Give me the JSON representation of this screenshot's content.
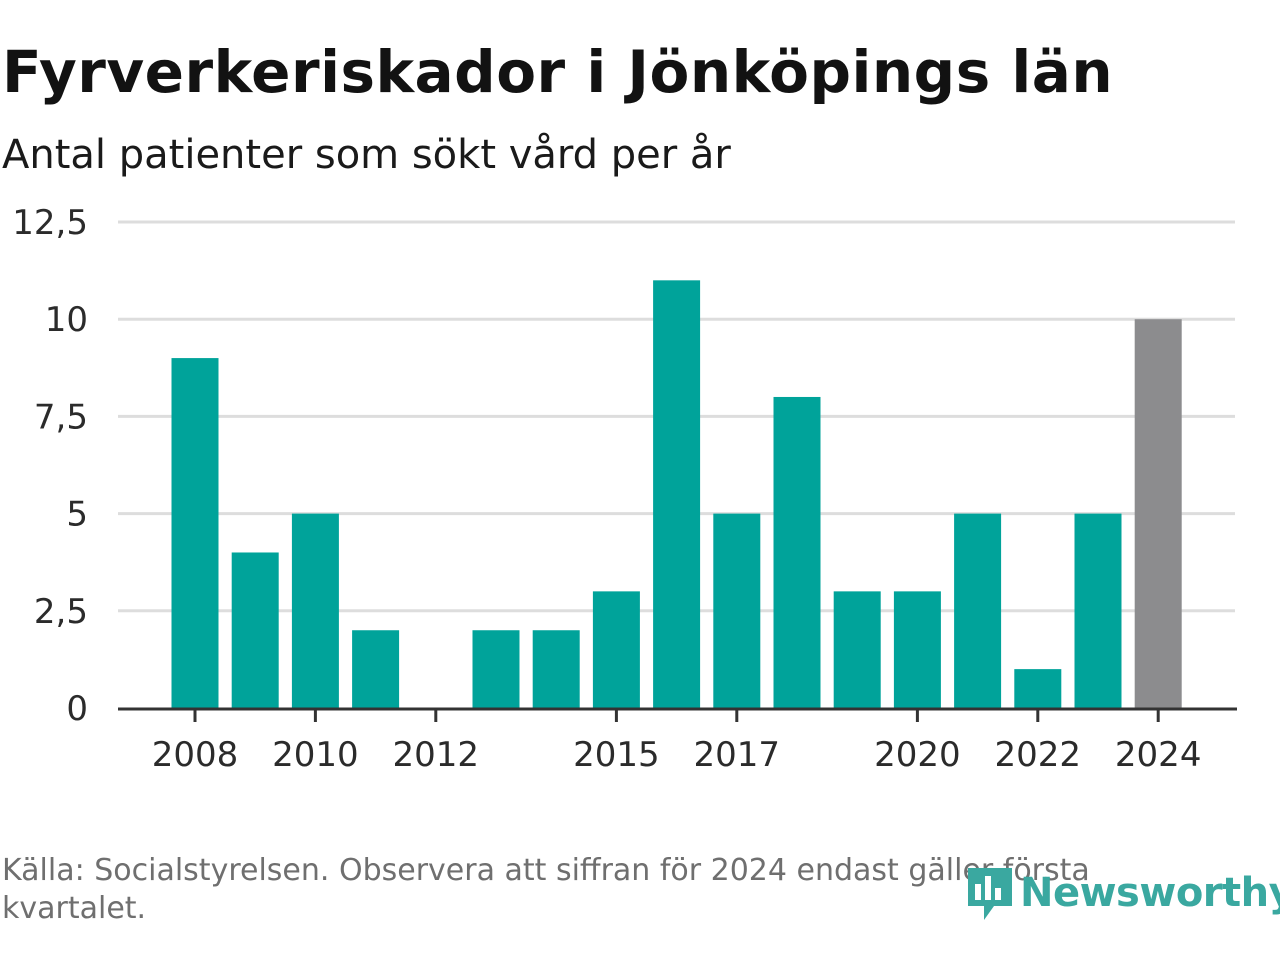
{
  "title": "Fyrverkeriskador i Jönköpings län",
  "subtitle": "Antal patienter som sökt vård per år",
  "footnote": "Källa: Socialstyrelsen. Observera att siffran för 2024 endast gäller första kvartalet.",
  "brand": {
    "name": "Newsworthy",
    "icon": "newsworthy-logo-icon",
    "color": "#3aa8a0"
  },
  "colors": {
    "bar": "#00a39a",
    "highlight": "#8c8c8e",
    "grid": "#dddddd",
    "axis": "#333333"
  },
  "chart_data": {
    "type": "bar",
    "categories": [
      "2008",
      "2009",
      "2010",
      "2011",
      "2012",
      "2013",
      "2014",
      "2015",
      "2016",
      "2017",
      "2018",
      "2019",
      "2020",
      "2021",
      "2022",
      "2023",
      "2024"
    ],
    "values": [
      9,
      4,
      5,
      2,
      0,
      2,
      2,
      3,
      11,
      5,
      8,
      3,
      3,
      5,
      1,
      5,
      10
    ],
    "highlighted": [
      "2024"
    ],
    "xtick_labels": [
      "2008",
      "2010",
      "2012",
      "2015",
      "2017",
      "2020",
      "2022",
      "2024"
    ],
    "ytick_labels": [
      "0",
      "2,5",
      "5",
      "7,5",
      "10",
      "12,5"
    ],
    "yticks": [
      0,
      2.5,
      5,
      7.5,
      10,
      12.5
    ],
    "ylim": [
      0,
      12.5
    ],
    "xlabel": "",
    "ylabel": "",
    "grid": true,
    "legend": "none"
  }
}
